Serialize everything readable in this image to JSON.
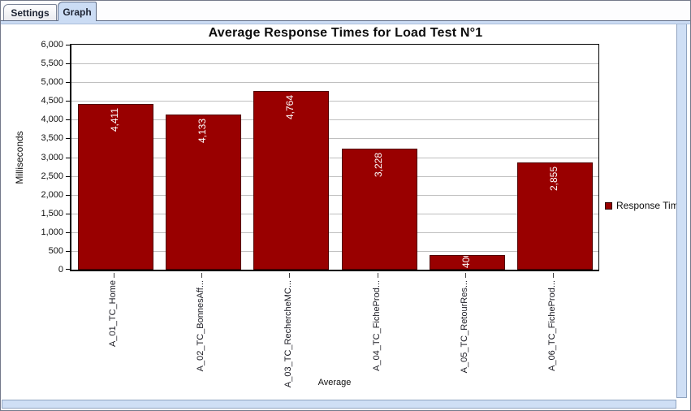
{
  "window": {
    "tabs": [
      {
        "label": "Settings",
        "selected": false
      },
      {
        "label": "Graph",
        "selected": true
      }
    ]
  },
  "legend": {
    "label": "Response Time"
  },
  "colors": {
    "bar": "#990000",
    "bar_border": "#500000",
    "selected_tab": "#cbdcf4",
    "scrollbar": "#cfdff5",
    "gridline": "#bfbfbf"
  },
  "chart_data": {
    "type": "bar",
    "title": "Average Response Times for Load Test N°1",
    "xlabel": "Average",
    "ylabel": "Milliseconds",
    "ylim": [
      0,
      6000
    ],
    "ytick_step": 500,
    "ytick_labels": [
      "0",
      "500",
      "1,000",
      "1,500",
      "2,000",
      "2,500",
      "3,000",
      "3,500",
      "4,000",
      "4,500",
      "5,000",
      "5,500",
      "6,000"
    ],
    "grid": true,
    "legend_position": "right",
    "categories": [
      "A_01_TC_Home",
      "A_02_TC_BonnesAff...",
      "A_03_TC_RechercheMC...",
      "A_04_TC_FicheProd...",
      "A_05_TC_RetourRes...",
      "A_06_TC_FicheProd..."
    ],
    "series": [
      {
        "name": "Response Time",
        "values": [
          4411,
          4133,
          4764,
          3228,
          400,
          2855
        ]
      }
    ],
    "bar_labels": [
      "4,411",
      "4,133",
      "4,764",
      "3,228",
      "400",
      "2,855"
    ],
    "bar_color": "#990000"
  }
}
